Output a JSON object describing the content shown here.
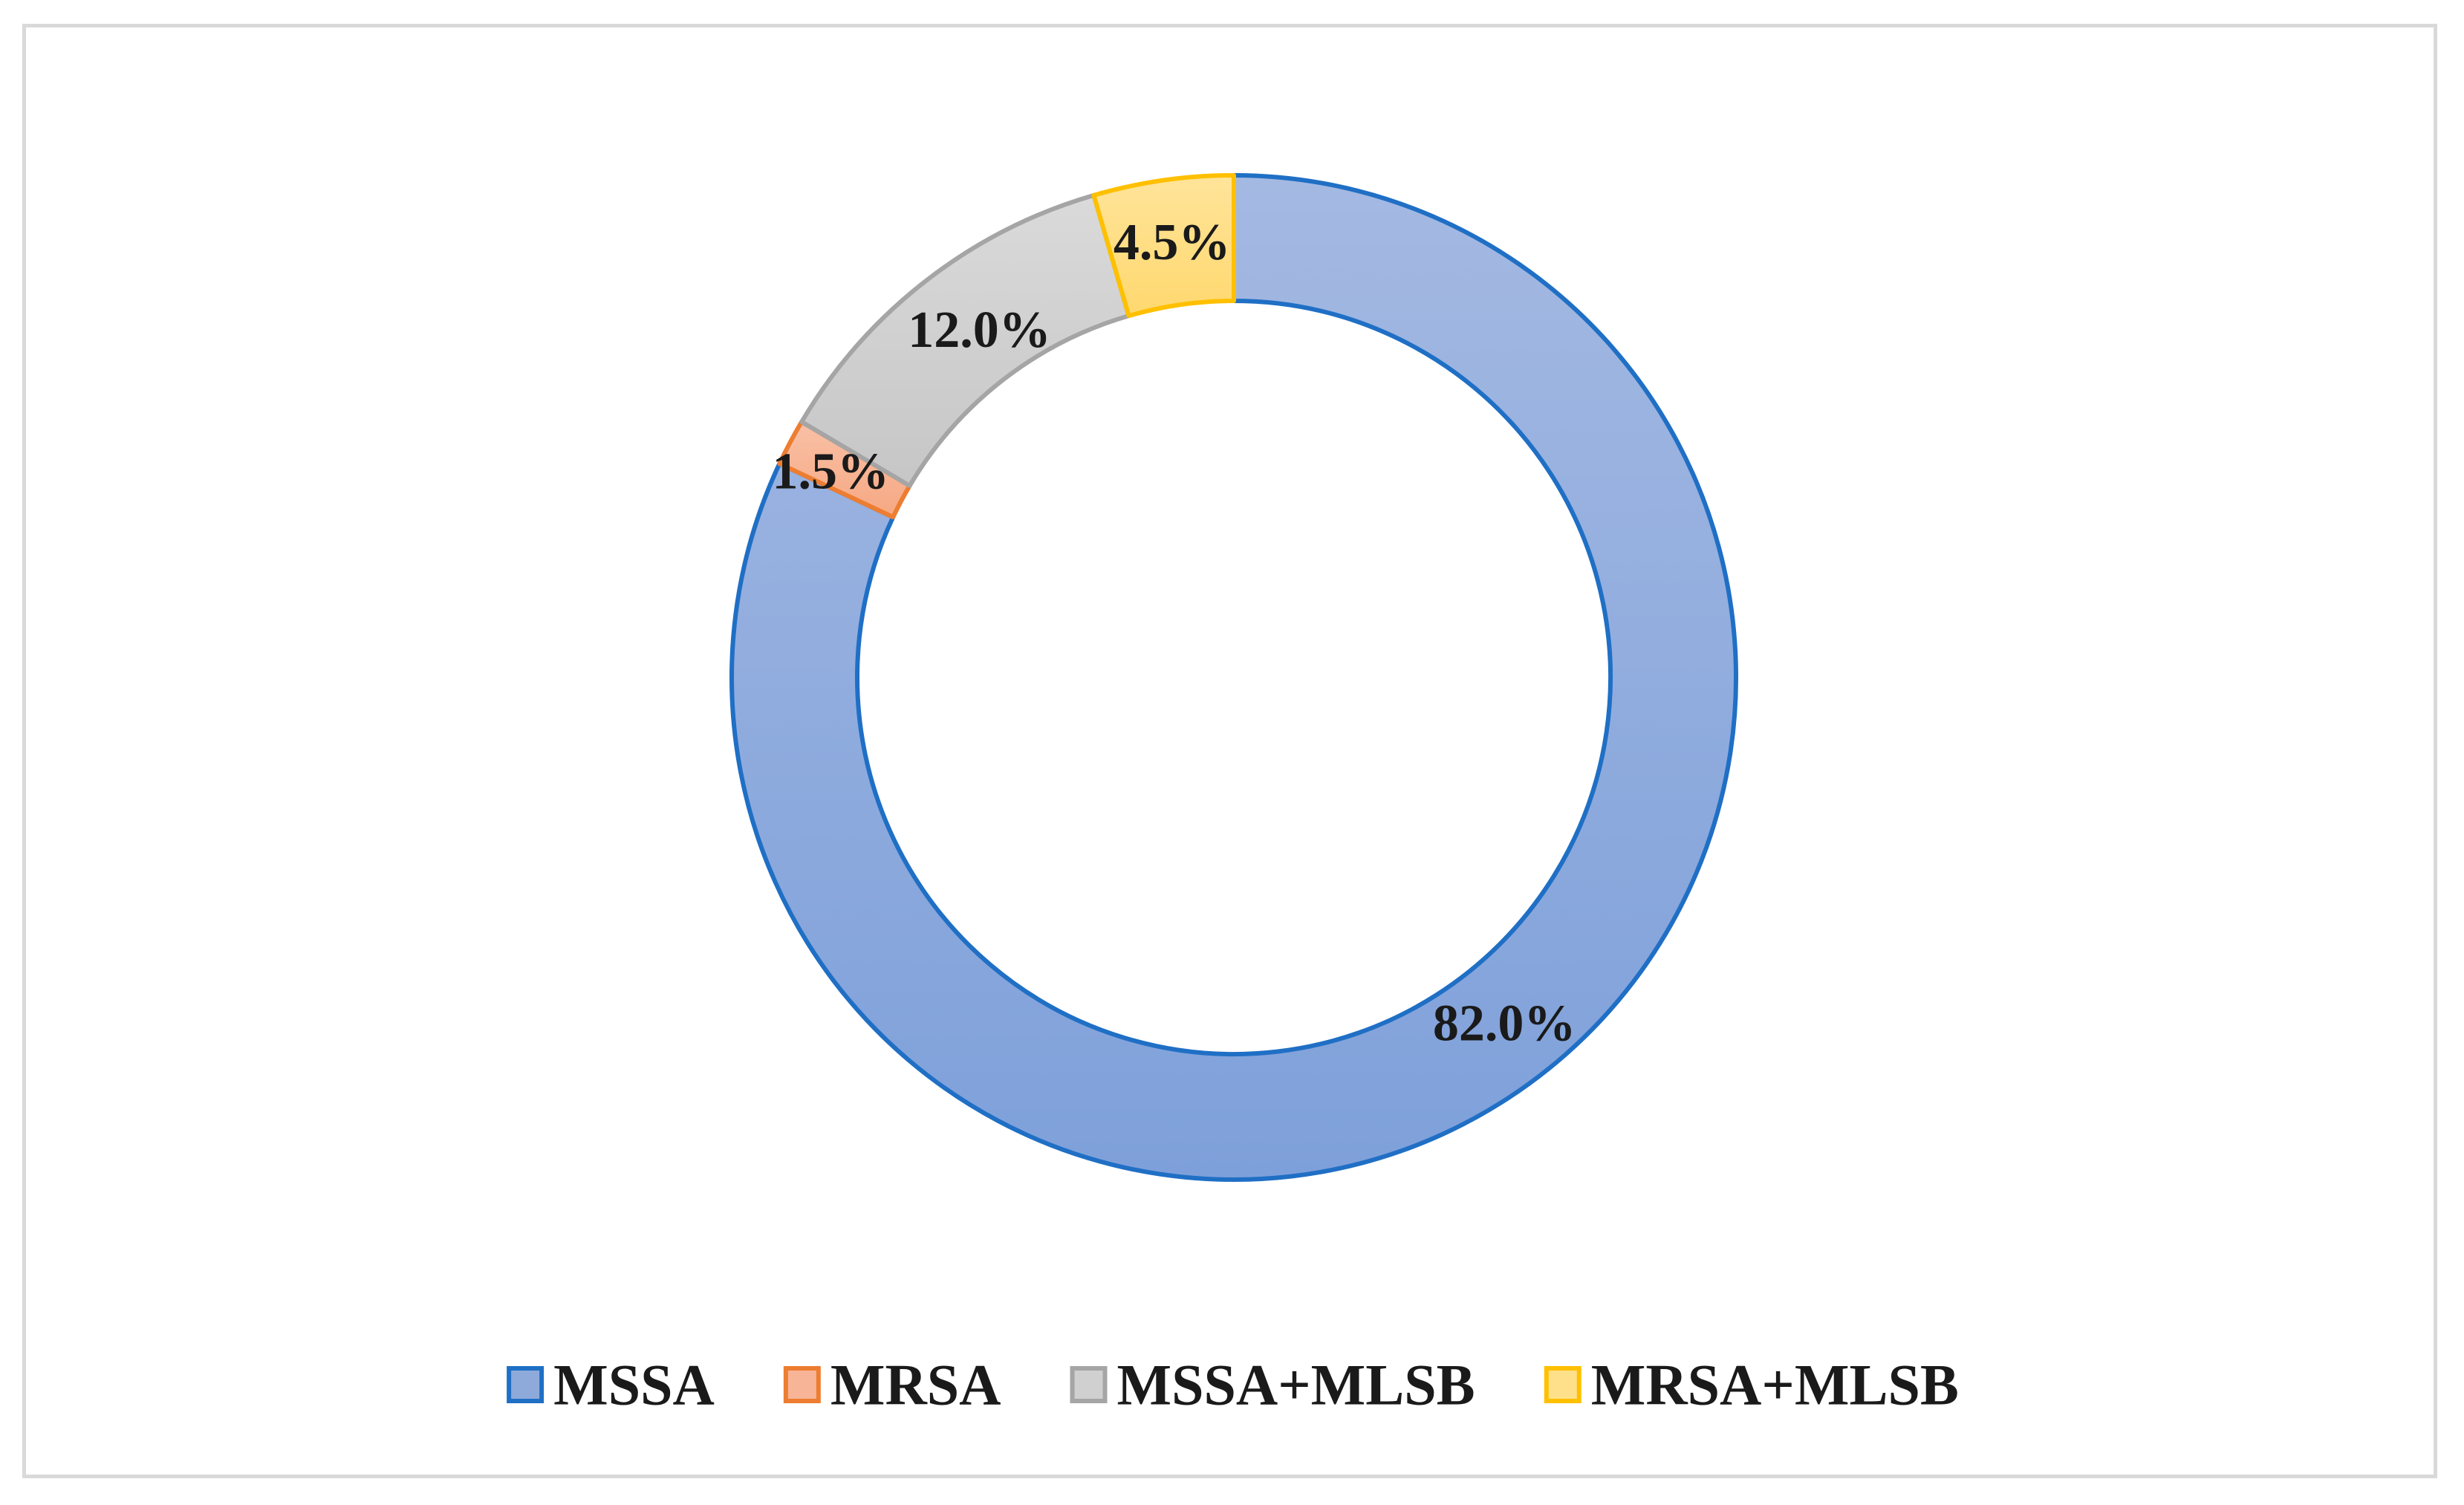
{
  "chart_data": {
    "type": "pie",
    "variant": "donut",
    "title": "",
    "start_angle": "12 o'clock, clockwise",
    "legend_position": "bottom",
    "series": [
      {
        "name": "MSSA",
        "value": 82.0,
        "label": "82.0%",
        "fill": "#8eaadb",
        "stroke": "#1f6fc5"
      },
      {
        "name": "MRSA",
        "value": 1.5,
        "label": "1.5%",
        "fill": "#f8b496",
        "stroke": "#ed7d31"
      },
      {
        "name": "MSSA+MLSB",
        "value": 12.0,
        "label": "12.0%",
        "fill": "#d0d0d0",
        "stroke": "#a5a5a5"
      },
      {
        "name": "MRSA+MLSB",
        "value": 4.5,
        "label": "4.5%",
        "fill": "#ffe08a",
        "stroke": "#ffc000"
      }
    ]
  }
}
